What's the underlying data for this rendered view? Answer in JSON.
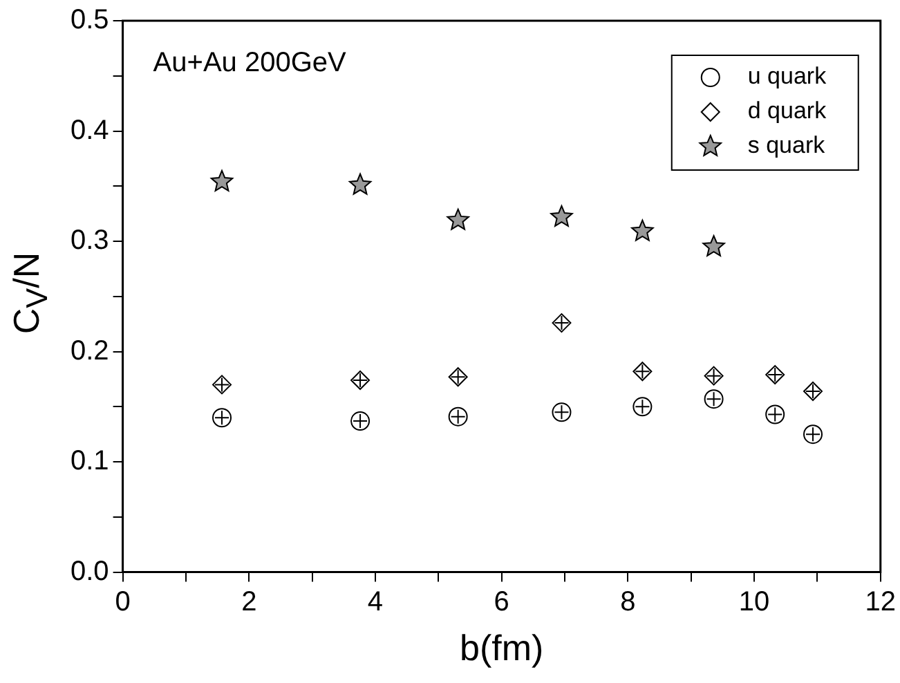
{
  "chart_data": {
    "type": "scatter",
    "xlabel": "b(fm)",
    "ylabel": "C$_{V}$/N",
    "annotations": [
      "Au+Au 200GeV"
    ],
    "xlim": [
      0,
      12
    ],
    "xticks": [
      0,
      {
        "value": 1,
        "label": null
      },
      2,
      {
        "value": 3,
        "label": null
      },
      4,
      {
        "value": 5,
        "label": null
      },
      6,
      {
        "value": 7,
        "label": null
      },
      8,
      {
        "value": 9,
        "label": null
      },
      10,
      {
        "value": 11,
        "label": null
      },
      12
    ],
    "ylim": [
      0,
      0.5
    ],
    "yticks": [
      "0.0",
      {
        "value": 0.05,
        "label": null
      },
      0.1,
      {
        "value": 0.15,
        "label": null
      },
      0.2,
      {
        "value": 0.25,
        "label": null
      },
      0.3,
      {
        "value": 0.35,
        "label": null
      },
      0.4,
      {
        "value": 0.45,
        "label": null
      },
      0.5
    ],
    "grid": false,
    "legend": "top right",
    "series": [
      {
        "name": "u quark",
        "color": "#000000",
        "marker": "circle",
        "x": [
          1.57,
          3.76,
          5.31,
          6.95,
          8.23,
          9.36,
          10.33,
          10.93
        ],
        "values": [
          0.14,
          0.137,
          0.141,
          0.145,
          0.15,
          0.157,
          0.143,
          0.125
        ]
      },
      {
        "name": "d quark",
        "color": "#000000",
        "marker": "diamond",
        "x": [
          1.57,
          3.76,
          5.31,
          6.95,
          8.23,
          9.36,
          10.33,
          10.93
        ],
        "values": [
          0.17,
          0.174,
          0.177,
          0.226,
          0.182,
          0.178,
          0.179,
          0.164
        ]
      },
      {
        "name": "s quark",
        "color": "#000000",
        "marker": "star",
        "x": [
          1.57,
          3.76,
          5.31,
          6.95,
          8.23,
          9.36
        ],
        "values": [
          0.354,
          0.351,
          0.319,
          0.322,
          0.309,
          0.295
        ]
      }
    ]
  }
}
